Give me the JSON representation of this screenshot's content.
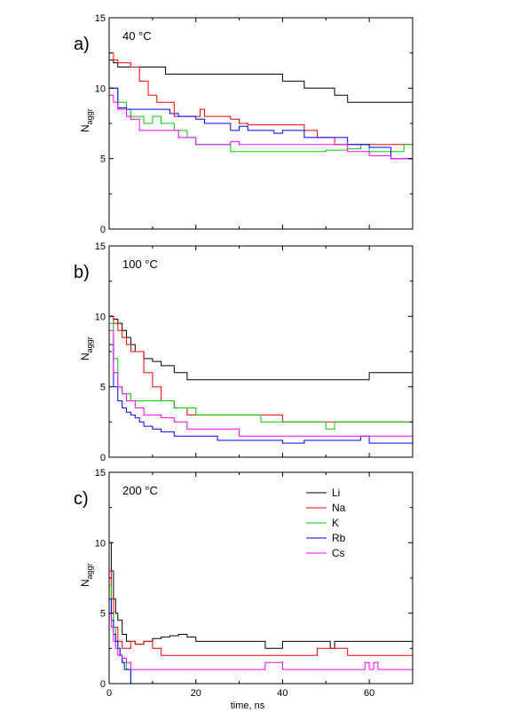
{
  "chart_data": [
    {
      "type": "line",
      "panel_label": "a)",
      "annotation": "40 °C",
      "ylabel_main": "N",
      "ylabel_sub": "aggr",
      "xlim": [
        0,
        70
      ],
      "ylim": [
        0,
        15
      ],
      "xticks": [
        0,
        20,
        40,
        60
      ],
      "yticks": [
        0,
        5,
        10,
        15
      ],
      "xtick_labels_shown": false,
      "series": [
        {
          "name": "Li",
          "color": "#000000",
          "x": [
            0,
            1,
            2,
            5,
            10,
            13,
            20,
            30,
            35,
            40,
            45,
            52,
            55,
            60,
            70
          ],
          "values": [
            12,
            11.8,
            11.5,
            11.5,
            11.5,
            11,
            11,
            11,
            11,
            10.5,
            10,
            9.5,
            9,
            9,
            9
          ]
        },
        {
          "name": "Na",
          "color": "#ff0000",
          "x": [
            0,
            1,
            2,
            5,
            7,
            9,
            11,
            13,
            15,
            20,
            21,
            22,
            25,
            28,
            30,
            32,
            40,
            45,
            48,
            50,
            52,
            60,
            65,
            70
          ],
          "values": [
            12.5,
            12,
            11.8,
            11.5,
            10.5,
            9.5,
            9,
            9,
            8,
            8,
            8.5,
            8,
            8,
            7.8,
            7.5,
            7.4,
            7.4,
            7,
            6.5,
            6.5,
            6,
            6,
            6,
            6
          ]
        },
        {
          "name": "K",
          "color": "#00cc00",
          "x": [
            0,
            1,
            2,
            4,
            5,
            8,
            10,
            12,
            15,
            18,
            20,
            22,
            25,
            28,
            30,
            35,
            40,
            45,
            50,
            55,
            58,
            60,
            65,
            68,
            70
          ],
          "values": [
            10,
            10,
            9,
            8.5,
            8,
            7.5,
            8,
            7.5,
            7,
            6.5,
            6,
            6,
            6,
            5.5,
            5.5,
            5.5,
            5.5,
            5.5,
            5.6,
            5.7,
            6,
            5.5,
            5.5,
            6,
            6
          ]
        },
        {
          "name": "Rb",
          "color": "#0000ff",
          "x": [
            0,
            1,
            2,
            4,
            6,
            8,
            10,
            12,
            14,
            16,
            18,
            20,
            22,
            25,
            28,
            30,
            32,
            35,
            38,
            40,
            45,
            48,
            52,
            55,
            58,
            60,
            65,
            70
          ],
          "values": [
            10,
            10,
            8.6,
            8.5,
            8.5,
            8.5,
            8.5,
            8.5,
            8.2,
            8,
            8,
            7.8,
            7.5,
            7.5,
            7,
            7.3,
            7,
            7,
            6.8,
            7,
            6.5,
            6.5,
            6.5,
            6,
            6,
            5.8,
            5,
            5
          ]
        },
        {
          "name": "Cs",
          "color": "#ff00ff",
          "x": [
            0,
            1,
            2,
            4,
            5,
            7,
            10,
            12,
            14,
            16,
            18,
            20,
            22,
            25,
            28,
            30,
            35,
            40,
            45,
            50,
            55,
            60,
            65,
            70
          ],
          "values": [
            9.5,
            9,
            8.5,
            8,
            7.8,
            7,
            7,
            7,
            7,
            6.5,
            6.5,
            6,
            6,
            6,
            6.2,
            6,
            6,
            6,
            6,
            6,
            5.5,
            5.2,
            5,
            5
          ]
        }
      ]
    },
    {
      "type": "line",
      "panel_label": "b)",
      "annotation": "100 °C",
      "ylabel_main": "N",
      "ylabel_sub": "aggr",
      "xlim": [
        0,
        70
      ],
      "ylim": [
        0,
        15
      ],
      "xticks": [
        0,
        20,
        40,
        60
      ],
      "yticks": [
        0,
        5,
        10,
        15
      ],
      "xtick_labels_shown": false,
      "series": [
        {
          "name": "Li",
          "color": "#000000",
          "x": [
            0,
            1,
            2,
            3,
            4,
            5,
            6,
            8,
            10,
            12,
            15,
            18,
            20,
            30,
            40,
            50,
            58,
            60,
            70
          ],
          "values": [
            10,
            9.8,
            9.5,
            9,
            8.5,
            8,
            7.5,
            7,
            6.8,
            6.5,
            6,
            5.5,
            5.5,
            5.5,
            5.5,
            5.5,
            5.5,
            6,
            6
          ]
        },
        {
          "name": "Na",
          "color": "#ff0000",
          "x": [
            0,
            1,
            2,
            3,
            4,
            5,
            6,
            8,
            10,
            12,
            15,
            18,
            20,
            30,
            35,
            40,
            60,
            70
          ],
          "values": [
            10,
            9.5,
            9,
            8.5,
            8,
            7.5,
            7.5,
            6,
            5,
            4,
            3.5,
            3,
            3,
            3,
            3,
            2.5,
            2.5,
            2.5
          ]
        },
        {
          "name": "K",
          "color": "#00cc00",
          "x": [
            0,
            1,
            2,
            3,
            5,
            8,
            10,
            15,
            18,
            20,
            25,
            30,
            35,
            40,
            50,
            52,
            60,
            70
          ],
          "values": [
            9.5,
            7,
            5,
            4.5,
            4,
            4,
            4,
            3.5,
            3.5,
            3,
            3,
            3,
            2.5,
            2.5,
            2,
            2.5,
            2.5,
            2.5
          ]
        },
        {
          "name": "Rb",
          "color": "#0000ff",
          "x": [
            0,
            1,
            2,
            3,
            4,
            5,
            6,
            7,
            8,
            10,
            12,
            15,
            18,
            20,
            22,
            25,
            30,
            35,
            40,
            45,
            50,
            55,
            58,
            60,
            65,
            70
          ],
          "values": [
            8,
            5,
            4,
            3.5,
            3.2,
            3,
            2.8,
            2.5,
            2.2,
            2,
            1.8,
            1.5,
            1.5,
            1.5,
            1.5,
            1.2,
            1.2,
            1.2,
            1,
            1.2,
            1.2,
            1.2,
            1.5,
            1,
            1,
            1
          ]
        },
        {
          "name": "Cs",
          "color": "#ff00ff",
          "x": [
            0,
            1,
            2,
            3,
            4,
            5,
            6,
            8,
            10,
            12,
            15,
            18,
            20,
            25,
            30,
            40,
            50,
            60,
            65,
            70
          ],
          "values": [
            9,
            6,
            5,
            4.5,
            4,
            4,
            3.5,
            3,
            3,
            2.8,
            2.5,
            2,
            2,
            2,
            1.5,
            1.5,
            1.5,
            1.5,
            1.5,
            1.5
          ]
        }
      ]
    },
    {
      "type": "line",
      "panel_label": "c)",
      "annotation": "200 °C",
      "ylabel_main": "N",
      "ylabel_sub": "aggr",
      "xlim": [
        0,
        70
      ],
      "ylim": [
        0,
        15
      ],
      "xticks": [
        0,
        20,
        40,
        60
      ],
      "yticks": [
        0,
        5,
        10,
        15
      ],
      "xtick_labels_shown": true,
      "xlabel": "time, ns",
      "legend_placement": "top-right",
      "series": [
        {
          "name": "Li",
          "color": "#000000",
          "x": [
            0,
            0.5,
            1,
            1.5,
            2,
            3,
            4,
            5,
            6,
            8,
            10,
            12,
            14,
            16,
            18,
            20,
            22,
            30,
            35,
            36,
            40,
            50,
            51,
            52,
            60,
            70
          ],
          "values": [
            10,
            8,
            6,
            5,
            4.5,
            3.5,
            3,
            3,
            2.8,
            3,
            3.2,
            3.3,
            3.4,
            3.5,
            3.3,
            3,
            3,
            3,
            3,
            2.5,
            3,
            3,
            2.5,
            3,
            3,
            3
          ]
        },
        {
          "name": "Na",
          "color": "#ff0000",
          "x": [
            0,
            0.5,
            1,
            2,
            3,
            4,
            5,
            6,
            8,
            10,
            12,
            15,
            20,
            25,
            30,
            35,
            40,
            45,
            48,
            50,
            55,
            60,
            65,
            70
          ],
          "values": [
            8,
            6,
            4,
            3,
            2.5,
            2.5,
            3,
            2.8,
            3,
            2.5,
            2,
            2,
            2,
            2,
            2,
            2,
            2,
            2,
            2.5,
            2.5,
            2,
            2,
            2,
            2
          ]
        },
        {
          "name": "K",
          "color": "#00cc00",
          "x": [
            0,
            0.5,
            1,
            1.5,
            2,
            2.5,
            3,
            4,
            5,
            10,
            20,
            30,
            40,
            50,
            60,
            70
          ],
          "values": [
            7,
            5,
            4,
            3,
            2.5,
            2,
            1.5,
            1,
            0,
            0,
            0,
            0,
            0,
            0,
            0,
            0
          ]
        },
        {
          "name": "Rb",
          "color": "#0000ff",
          "x": [
            0,
            0.5,
            1,
            1.5,
            2,
            2.5,
            3,
            3.5,
            4,
            5,
            10,
            20,
            30,
            40,
            50,
            60,
            70
          ],
          "values": [
            6,
            4.5,
            3.5,
            3,
            2.5,
            2,
            1.5,
            1,
            1,
            0,
            0,
            0,
            0,
            0,
            0,
            0,
            0
          ]
        },
        {
          "name": "Cs",
          "color": "#ff00ff",
          "x": [
            0,
            0.5,
            1,
            1.5,
            2,
            3,
            4,
            5,
            6,
            8,
            10,
            20,
            30,
            35,
            36,
            40,
            50,
            58,
            59,
            60,
            61,
            62,
            65,
            70
          ],
          "values": [
            5,
            4,
            3,
            2.5,
            2,
            1.8,
            1.5,
            1,
            1,
            1,
            1,
            1,
            1,
            1,
            1.5,
            1,
            1,
            1,
            1.5,
            1,
            1.5,
            1,
            1,
            1
          ]
        }
      ]
    }
  ]
}
